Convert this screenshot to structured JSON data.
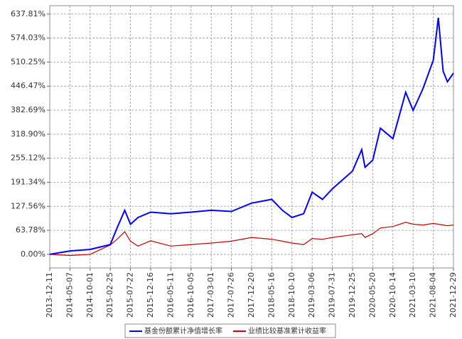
{
  "chart_data": {
    "type": "line",
    "x": [
      "2013-12-11",
      "2014-05-07",
      "2014-10-01",
      "2015-02-25",
      "2015-04-15",
      "2015-06-10",
      "2015-07-22",
      "2015-09-15",
      "2015-12-16",
      "2016-05-11",
      "2016-10-05",
      "2017-03-01",
      "2017-07-26",
      "2017-12-20",
      "2018-05-16",
      "2018-08-01",
      "2018-10-10",
      "2019-01-03",
      "2019-03-06",
      "2019-05-20",
      "2019-07-31",
      "2019-12-25",
      "2020-03-01",
      "2020-03-25",
      "2020-05-20",
      "2020-07-15",
      "2020-10-14",
      "2021-01-15",
      "2021-03-10",
      "2021-05-20",
      "2021-08-04",
      "2021-09-10",
      "2021-10-15",
      "2021-11-15",
      "2021-12-29"
    ],
    "series": [
      {
        "name": "基金份额累计净值增长率",
        "color": "#0000ff",
        "values": [
          0,
          9,
          13,
          26,
          70,
          117,
          80,
          98,
          112,
          108,
          112,
          117,
          114,
          136,
          146,
          117,
          98,
          108,
          165,
          146,
          174,
          221,
          278,
          231,
          250,
          335,
          307,
          430,
          382,
          439,
          515,
          628,
          486,
          458,
          481
        ]
      },
      {
        "name": "业绩比较基准累计收益率",
        "color": "#cc0000",
        "values": [
          0,
          -3,
          0,
          25,
          40,
          60,
          35,
          22,
          36,
          22,
          26,
          30,
          35,
          45,
          40,
          35,
          30,
          26,
          42,
          40,
          45,
          52,
          55,
          45,
          55,
          70,
          74,
          85,
          80,
          78,
          82,
          80,
          78,
          76,
          78
        ]
      }
    ],
    "xlim": [
      "2013-12-11",
      "2021-12-29"
    ],
    "xticks": [
      "2013-12-11",
      "2014-05-07",
      "2014-10-01",
      "2015-02-25",
      "2015-07-22",
      "2015-12-16",
      "2016-05-11",
      "2016-10-05",
      "2017-03-01",
      "2017-07-26",
      "2017-12-20",
      "2018-05-16",
      "2018-10-10",
      "2019-03-06",
      "2019-07-31",
      "2019-12-25",
      "2020-05-20",
      "2020-10-14",
      "2021-03-10",
      "2021-08-04",
      "2021-12-29"
    ],
    "ylim": [
      -36,
      660
    ],
    "yticks": [
      {
        "value": 0,
        "label": "0.00%"
      },
      {
        "value": 63.78,
        "label": "63.78%"
      },
      {
        "value": 127.56,
        "label": "127.56%"
      },
      {
        "value": 191.34,
        "label": "191.34%"
      },
      {
        "value": 255.12,
        "label": "255.12%"
      },
      {
        "value": 318.9,
        "label": "318.90%"
      },
      {
        "value": 382.69,
        "label": "382.69%"
      },
      {
        "value": 446.47,
        "label": "446.47%"
      },
      {
        "value": 510.25,
        "label": "510.25%"
      },
      {
        "value": 574.03,
        "label": "574.03%"
      },
      {
        "value": 637.81,
        "label": "637.81%"
      }
    ],
    "grid": true
  }
}
